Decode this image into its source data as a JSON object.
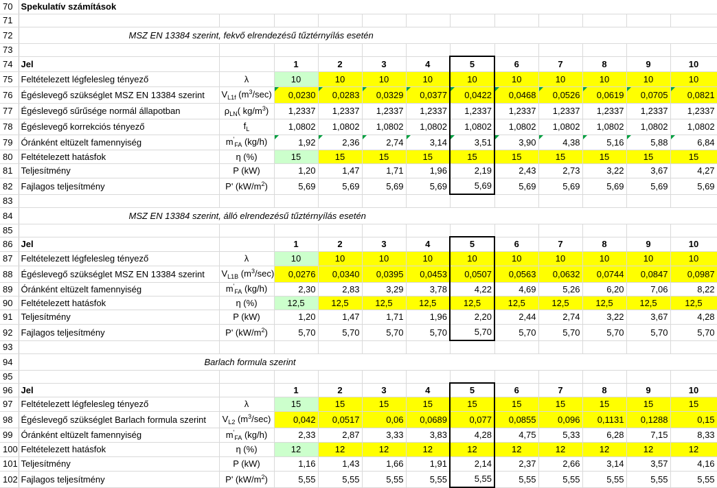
{
  "sheet": {
    "row_numbers": [
      "70",
      "71",
      "72",
      "73",
      "74",
      "75",
      "76",
      "77",
      "78",
      "79",
      "80",
      "81",
      "82",
      "83",
      "84",
      "85",
      "86",
      "87",
      "88",
      "89",
      "90",
      "91",
      "92",
      "93",
      "94",
      "95",
      "96",
      "97",
      "98",
      "99",
      "100",
      "101",
      "102"
    ],
    "title": "Spekulatív számítások",
    "section1": {
      "subtitle": "MSZ EN 13384 szerint, fekvő elrendezésű tűztérnyílás esetén",
      "header_label": "Jel",
      "columns": [
        "1",
        "2",
        "3",
        "4",
        "5",
        "6",
        "7",
        "8",
        "9",
        "10"
      ],
      "rows": [
        {
          "label": "Feltételezett légfelesleg tényező",
          "sym": "λ",
          "values": [
            "10",
            "10",
            "10",
            "10",
            "10",
            "10",
            "10",
            "10",
            "10",
            "10"
          ]
        },
        {
          "label": "Égéslevegő szükséglet MSZ EN 13384 szerint",
          "sym_main": "V",
          "sym_sub": "L1f",
          "sym_unit_pre": " (m",
          "sym_sup": "3",
          "sym_unit_post": "/sec)",
          "values": [
            "0,0230",
            "0,0283",
            "0,0329",
            "0,0377",
            "0,0422",
            "0,0468",
            "0,0526",
            "0,0619",
            "0,0705",
            "0,0821"
          ]
        },
        {
          "label": "Égéslevegő sűrűsége normál állapotban",
          "sym_main": "ρ",
          "sym_sub": "LN",
          "sym_unit_pre": "( kg/m",
          "sym_sup": "3",
          "sym_unit_post": ")",
          "values": [
            "1,2337",
            "1,2337",
            "1,2337",
            "1,2337",
            "1,2337",
            "1,2337",
            "1,2337",
            "1,2337",
            "1,2337",
            "1,2337"
          ]
        },
        {
          "label": "Égéslevegő korrekciós tényező",
          "sym_main": "f",
          "sym_sub": "L",
          "values": [
            "1,0802",
            "1,0802",
            "1,0802",
            "1,0802",
            "1,0802",
            "1,0802",
            "1,0802",
            "1,0802",
            "1,0802",
            "1,0802"
          ]
        },
        {
          "label": "Óránként eltüzelt famennyiség",
          "sym_main": "m",
          "sym_sup": "'",
          "sym_sub": "FA",
          "sym_unit_post": " (kg/h)",
          "values": [
            "1,92",
            "2,36",
            "2,74",
            "3,14",
            "3,51",
            "3,90",
            "4,38",
            "5,16",
            "5,88",
            "6,84"
          ]
        },
        {
          "label": "Feltételezett hatásfok",
          "sym": "η (%)",
          "values": [
            "15",
            "15",
            "15",
            "15",
            "15",
            "15",
            "15",
            "15",
            "15",
            "15"
          ]
        },
        {
          "label": "Teljesítmény",
          "sym": "P (kW)",
          "values": [
            "1,20",
            "1,47",
            "1,71",
            "1,96",
            "2,19",
            "2,43",
            "2,73",
            "3,22",
            "3,67",
            "4,27"
          ]
        },
        {
          "label": "Fajlagos teljesítmény",
          "sym_main": "P' (kW/m",
          "sym_sup": "2",
          "sym_unit_post": ")",
          "values": [
            "5,69",
            "5,69",
            "5,69",
            "5,69",
            "5,69",
            "5,69",
            "5,69",
            "5,69",
            "5,69",
            "5,69"
          ]
        }
      ]
    },
    "section2": {
      "subtitle": "MSZ EN 13384 szerint, álló elrendezésű tűztérnyílás esetén",
      "header_label": "Jel",
      "columns": [
        "1",
        "2",
        "3",
        "4",
        "5",
        "6",
        "7",
        "8",
        "9",
        "10"
      ],
      "rows": [
        {
          "label": "Feltételezett légfelesleg tényező",
          "sym": "λ",
          "values": [
            "10",
            "10",
            "10",
            "10",
            "10",
            "10",
            "10",
            "10",
            "10",
            "10"
          ]
        },
        {
          "label": "Égéslevegő szükséglet MSZ EN 13384 szerint",
          "sym_main": "V",
          "sym_sub": "L1B",
          "sym_unit_pre": " (m",
          "sym_sup": "3",
          "sym_unit_post": "/sec)",
          "values": [
            "0,0276",
            "0,0340",
            "0,0395",
            "0,0453",
            "0,0507",
            "0,0563",
            "0,0632",
            "0,0744",
            "0,0847",
            "0,0987"
          ]
        },
        {
          "label": "Óránként eltüzelt famennyiség",
          "sym_main": "m",
          "sym_sup": "'",
          "sym_sub": "FA",
          "sym_unit_post": " (kg/h)",
          "values": [
            "2,30",
            "2,83",
            "3,29",
            "3,78",
            "4,22",
            "4,69",
            "5,26",
            "6,20",
            "7,06",
            "8,22"
          ]
        },
        {
          "label": "Feltételezett hatásfok",
          "sym": "η (%)",
          "values": [
            "12,5",
            "12,5",
            "12,5",
            "12,5",
            "12,5",
            "12,5",
            "12,5",
            "12,5",
            "12,5",
            "12,5"
          ]
        },
        {
          "label": "Teljesítmény",
          "sym": "P (kW)",
          "values": [
            "1,20",
            "1,47",
            "1,71",
            "1,96",
            "2,20",
            "2,44",
            "2,74",
            "3,22",
            "3,67",
            "4,28"
          ]
        },
        {
          "label": "Fajlagos teljesítmény",
          "sym_main": "P' (kW/m",
          "sym_sup": "2",
          "sym_unit_post": ")",
          "values": [
            "5,70",
            "5,70",
            "5,70",
            "5,70",
            "5,70",
            "5,70",
            "5,70",
            "5,70",
            "5,70",
            "5,70"
          ]
        }
      ]
    },
    "section3": {
      "subtitle": "Barlach formula szerint",
      "header_label": "Jel",
      "columns": [
        "1",
        "2",
        "3",
        "4",
        "5",
        "6",
        "7",
        "8",
        "9",
        "10"
      ],
      "rows": [
        {
          "label": "Feltételezett légfelesleg tényező",
          "sym": "λ",
          "values": [
            "15",
            "15",
            "15",
            "15",
            "15",
            "15",
            "15",
            "15",
            "15",
            "15"
          ]
        },
        {
          "label": "Égéslevegő szükséglet Barlach formula szerint",
          "sym_main": "V",
          "sym_sub": "L2",
          "sym_unit_pre": " (m",
          "sym_sup": "3",
          "sym_unit_post": "/sec)",
          "values": [
            "0,042",
            "0,0517",
            "0,06",
            "0,0689",
            "0,077",
            "0,0855",
            "0,096",
            "0,1131",
            "0,1288",
            "0,15"
          ]
        },
        {
          "label": "Óránként eltüzelt famennyiség",
          "sym_main": "m",
          "sym_sup": "'",
          "sym_sub": "FA",
          "sym_unit_post": " (kg/h)",
          "values": [
            "2,33",
            "2,87",
            "3,33",
            "3,83",
            "4,28",
            "4,75",
            "5,33",
            "6,28",
            "7,15",
            "8,33"
          ]
        },
        {
          "label": "Feltételezett hatásfok",
          "sym": "η (%)",
          "values": [
            "12",
            "12",
            "12",
            "12",
            "12",
            "12",
            "12",
            "12",
            "12",
            "12"
          ]
        },
        {
          "label": "Teljesítmény",
          "sym": "P (kW)",
          "values": [
            "1,16",
            "1,43",
            "1,66",
            "1,91",
            "2,14",
            "2,37",
            "2,66",
            "3,14",
            "3,57",
            "4,16"
          ]
        },
        {
          "label": "Fajlagos teljesítmény",
          "sym_main": "P' (kW/m",
          "sym_sup": "2",
          "sym_unit_post": ")",
          "values": [
            "5,55",
            "5,55",
            "5,55",
            "5,55",
            "5,55",
            "5,55",
            "5,55",
            "5,55",
            "5,55",
            "5,55"
          ]
        }
      ]
    },
    "colors": {
      "yellow": "#ffff00",
      "green": "#ccffcc",
      "corner_marker": "#00a040"
    }
  }
}
